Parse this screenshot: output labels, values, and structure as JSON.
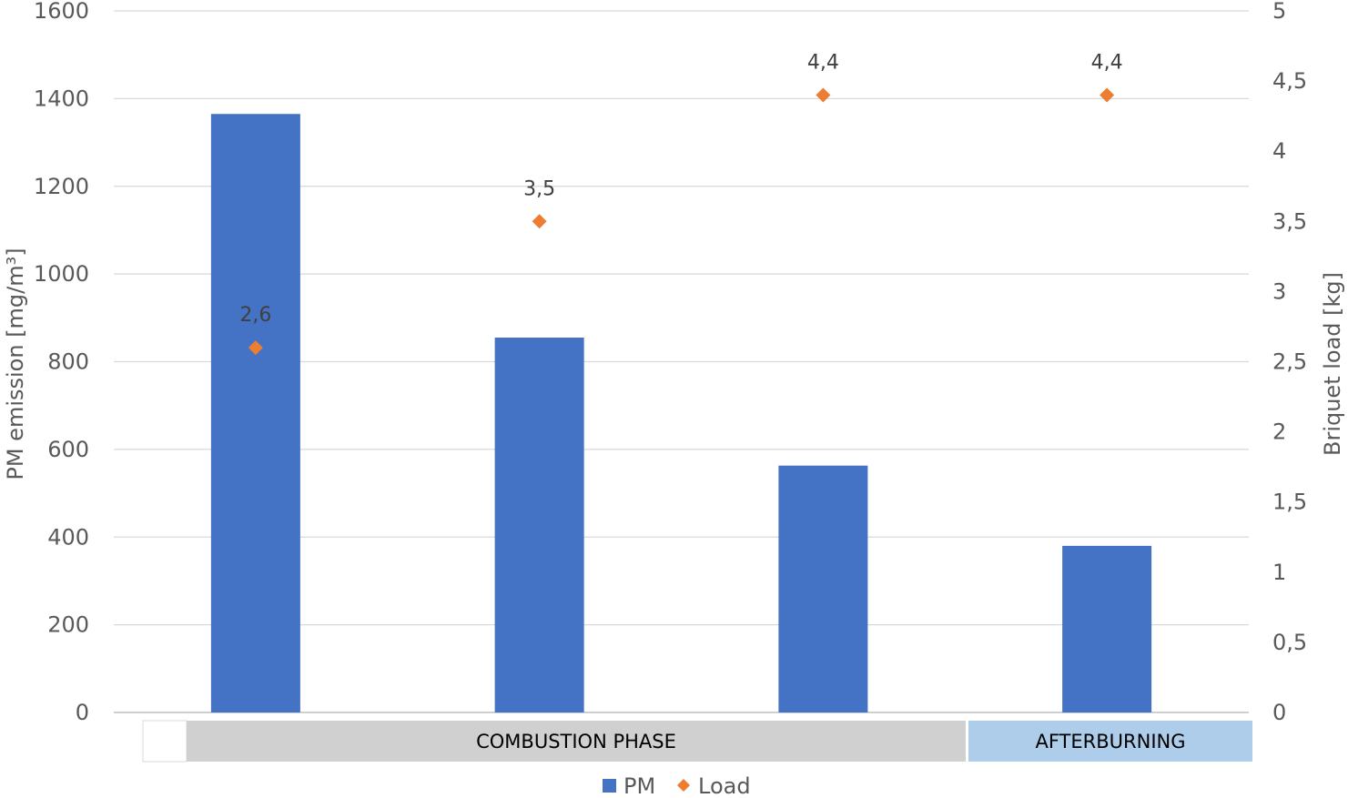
{
  "chart_data": {
    "type": "bar",
    "categories": [
      "",
      "",
      "",
      ""
    ],
    "series": [
      {
        "name": "PM",
        "kind": "bar",
        "axis": "left",
        "color": "#4472C4",
        "values": [
          1365,
          855,
          563,
          380
        ]
      },
      {
        "name": "Load",
        "kind": "scatter",
        "axis": "right",
        "marker": "diamond",
        "color": "#ED7D31",
        "values": [
          2.6,
          3.5,
          4.4,
          4.4
        ],
        "labels": [
          "2,6",
          "3,5",
          "4,4",
          "4,4"
        ]
      }
    ],
    "ylabel": "PM emission [mg/m³]",
    "y2label": "Briquet load [kg]",
    "ylim": [
      0,
      1600
    ],
    "y2lim": [
      0,
      5
    ],
    "yticks": [
      "0",
      "200",
      "400",
      "600",
      "800",
      "1000",
      "1200",
      "1400",
      "1600"
    ],
    "y2ticks": [
      "0",
      "0,5",
      "1",
      "1,5",
      "2",
      "2,5",
      "3",
      "3,5",
      "4",
      "4,5",
      "5"
    ],
    "grid": true,
    "legend_position": "bottom",
    "phases": [
      {
        "label": "",
        "color": "#FFFFFF"
      },
      {
        "label": "COMBUSTION PHASE",
        "color": "#D0D0D0"
      },
      {
        "label": "AFTERBURNING",
        "color": "#ADCDEB"
      }
    ]
  }
}
